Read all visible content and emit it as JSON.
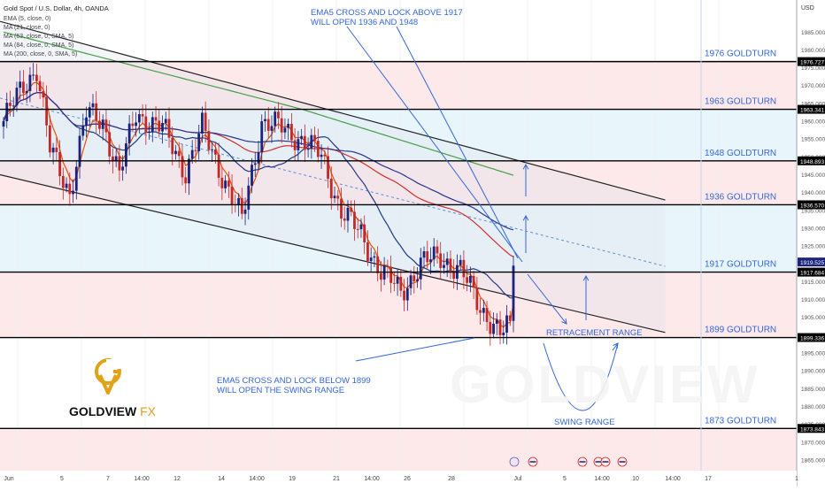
{
  "header": {
    "symbol": "Gold Spot / U.S. Dollar, 4h, OANDA",
    "indicators": [
      "EMA (5, close, 0)",
      "MA (21, close, 0)",
      "MA (63, close, 0, SMA, 5)",
      "MA (84, close, 0, SMA, 5)",
      "MA (200, close, 0, SMA, 5)"
    ]
  },
  "currency": "USD",
  "brand": {
    "name": "GOLDVIEW",
    "suffix": "FX",
    "watermark": "GOLDVIEW"
  },
  "colors": {
    "up": "#1a237e",
    "down": "#c62828",
    "ema5": "#e65100",
    "ma21": "#1e3a8a",
    "ma63": "#d32f2f",
    "ma84": "#283593",
    "ma200": "#43a047",
    "annotation": "#3367d6",
    "pink_zone": "#fde8ea",
    "blue_zone": "#e8f6fb",
    "gold": "#e0a317"
  },
  "chart_data": {
    "type": "candlestick",
    "instrument": "XAUUSD",
    "timeframe": "4h",
    "y_range": [
      1862,
      1994
    ],
    "x_ticks": [
      "Jun",
      "5",
      "7",
      "14:00",
      "12",
      "14",
      "14:00",
      "19",
      "21",
      "14:00",
      "26",
      "28",
      "Jul",
      "5",
      "14:00",
      "10",
      "14:00",
      "17",
      "1"
    ],
    "price_ticks": [
      1985.0,
      1980.0,
      1975.0,
      1970.0,
      1965.0,
      1960.0,
      1955.0,
      1950.0,
      1945.0,
      1940.0,
      1935.0,
      1930.0,
      1925.0,
      1920.0,
      1915.0,
      1910.0,
      1905.0,
      1900.0,
      1895.0,
      1890.0,
      1885.0,
      1880.0,
      1875.0,
      1870.0,
      1865.0
    ],
    "levels": [
      {
        "price": 1976.727,
        "label": "1976 GOLDTURN",
        "tag": "1976.727"
      },
      {
        "price": 1963.341,
        "label": "1963 GOLDTURN",
        "tag": "1963.341"
      },
      {
        "price": 1948.893,
        "label": "1948 GOLDTURN",
        "tag": "1948.893"
      },
      {
        "price": 1936.57,
        "label": "1936 GOLDTURN",
        "tag": "1936.570"
      },
      {
        "price": 1917.684,
        "label": "1917 GOLDTURN",
        "tag": "1917.684"
      },
      {
        "price": 1899.336,
        "label": "1899 GOLDTURN",
        "tag": "1899.336"
      },
      {
        "price": 1873.843,
        "label": "1873 GOLDTURN",
        "tag": "1873.843"
      }
    ],
    "last_price": {
      "price": 1919.525,
      "tag": "1919.525"
    },
    "channel": {
      "upper": [
        [
          0,
          1988
        ],
        [
          100,
          1928
        ]
      ],
      "lower": [
        [
          0,
          1945
        ],
        [
          100,
          1892
        ]
      ]
    },
    "candles_count": 155,
    "anchors": [
      [
        0,
        1960
      ],
      [
        6,
        1970
      ],
      [
        10,
        1975
      ],
      [
        14,
        1952
      ],
      [
        20,
        1940
      ],
      [
        25,
        1962
      ],
      [
        30,
        1960
      ],
      [
        35,
        1945
      ],
      [
        40,
        1962
      ],
      [
        48,
        1958
      ],
      [
        55,
        1946
      ],
      [
        60,
        1958
      ],
      [
        66,
        1945
      ],
      [
        72,
        1932
      ],
      [
        78,
        1960
      ],
      [
        84,
        1958
      ],
      [
        90,
        1955
      ],
      [
        96,
        1950
      ],
      [
        102,
        1935
      ],
      [
        108,
        1928
      ],
      [
        114,
        1918
      ],
      [
        120,
        1912
      ],
      [
        126,
        1920
      ],
      [
        132,
        1922
      ],
      [
        138,
        1918
      ],
      [
        144,
        1908
      ],
      [
        148,
        1903
      ],
      [
        150,
        1900
      ],
      [
        152,
        1902
      ],
      [
        154,
        1919
      ]
    ],
    "annotations": [
      {
        "text": [
          "EMA5 CROSS AND LOCK ABOVE 1917",
          "WILL OPEN 1936 AND 1948"
        ]
      },
      {
        "text": [
          "EMA5 CROSS AND LOCK BELOW 1899",
          "WILL OPEN THE SWING RANGE"
        ]
      },
      {
        "text": [
          "RETRACEMENT RANGE"
        ]
      },
      {
        "text": [
          "SWING RANGE"
        ]
      }
    ]
  }
}
